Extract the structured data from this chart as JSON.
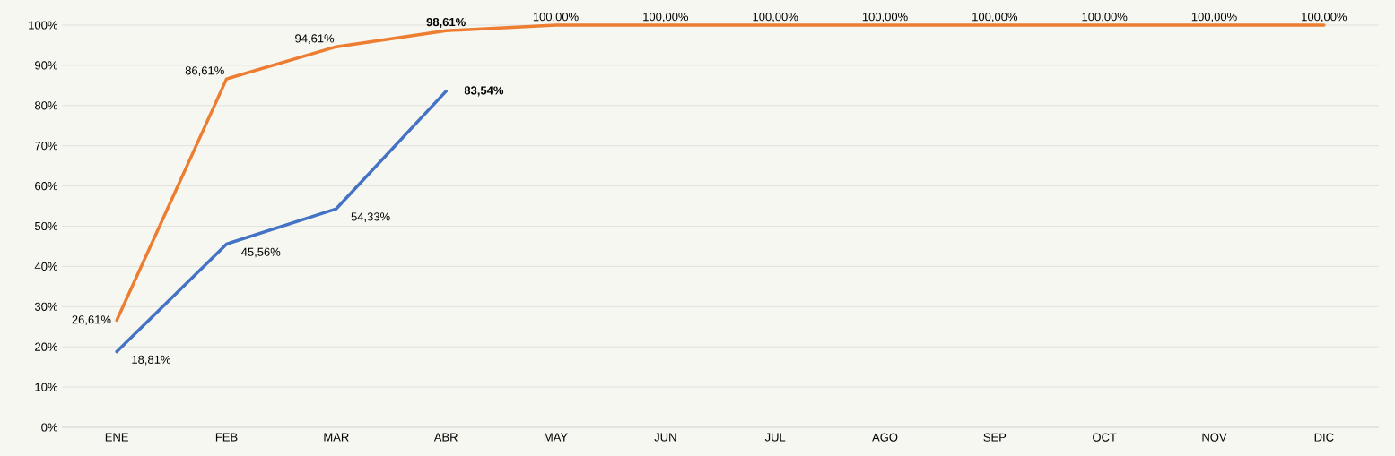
{
  "chart_data": {
    "type": "line",
    "categories": [
      "ENE",
      "FEB",
      "MAR",
      "ABR",
      "MAY",
      "JUN",
      "JUL",
      "AGO",
      "SEP",
      "OCT",
      "NOV",
      "DIC"
    ],
    "series": [
      {
        "color": "#ed7d31",
        "values": [
          26.61,
          86.61,
          94.61,
          98.61,
          100,
          100,
          100,
          100,
          100,
          100,
          100,
          100
        ],
        "value_labels": [
          "26,61%",
          "86,61%",
          "94,61%",
          "**98,61%**",
          "100,00%",
          "100,00%",
          "100,00%",
          "100,00%",
          "100,00%",
          "100,00%",
          "100,00%",
          "100,00%"
        ]
      },
      {
        "color": "#4472c4",
        "values": [
          18.81,
          45.56,
          54.33,
          83.54,
          null,
          null,
          null,
          null,
          null,
          null,
          null,
          null
        ],
        "value_labels": [
          "18,81%",
          "45,56%",
          "54,33%",
          "**83,54%**",
          null,
          null,
          null,
          null,
          null,
          null,
          null,
          null
        ]
      }
    ],
    "ylim": [
      0,
      100
    ],
    "yticks": [
      {
        "value": 0,
        "label": "0%"
      },
      {
        "value": 10,
        "label": "10%"
      },
      {
        "value": 20,
        "label": "20%"
      },
      {
        "value": 30,
        "label": "30%"
      },
      {
        "value": 40,
        "label": "40%"
      },
      {
        "value": 50,
        "label": "50%"
      },
      {
        "value": 60,
        "label": "60%"
      },
      {
        "value": 70,
        "label": "70%"
      },
      {
        "value": 80,
        "label": "80%"
      },
      {
        "value": 90,
        "label": "90%"
      },
      {
        "value": 100,
        "label": "100%"
      }
    ],
    "grid": "y",
    "marker": "none",
    "line_style": "solid"
  }
}
